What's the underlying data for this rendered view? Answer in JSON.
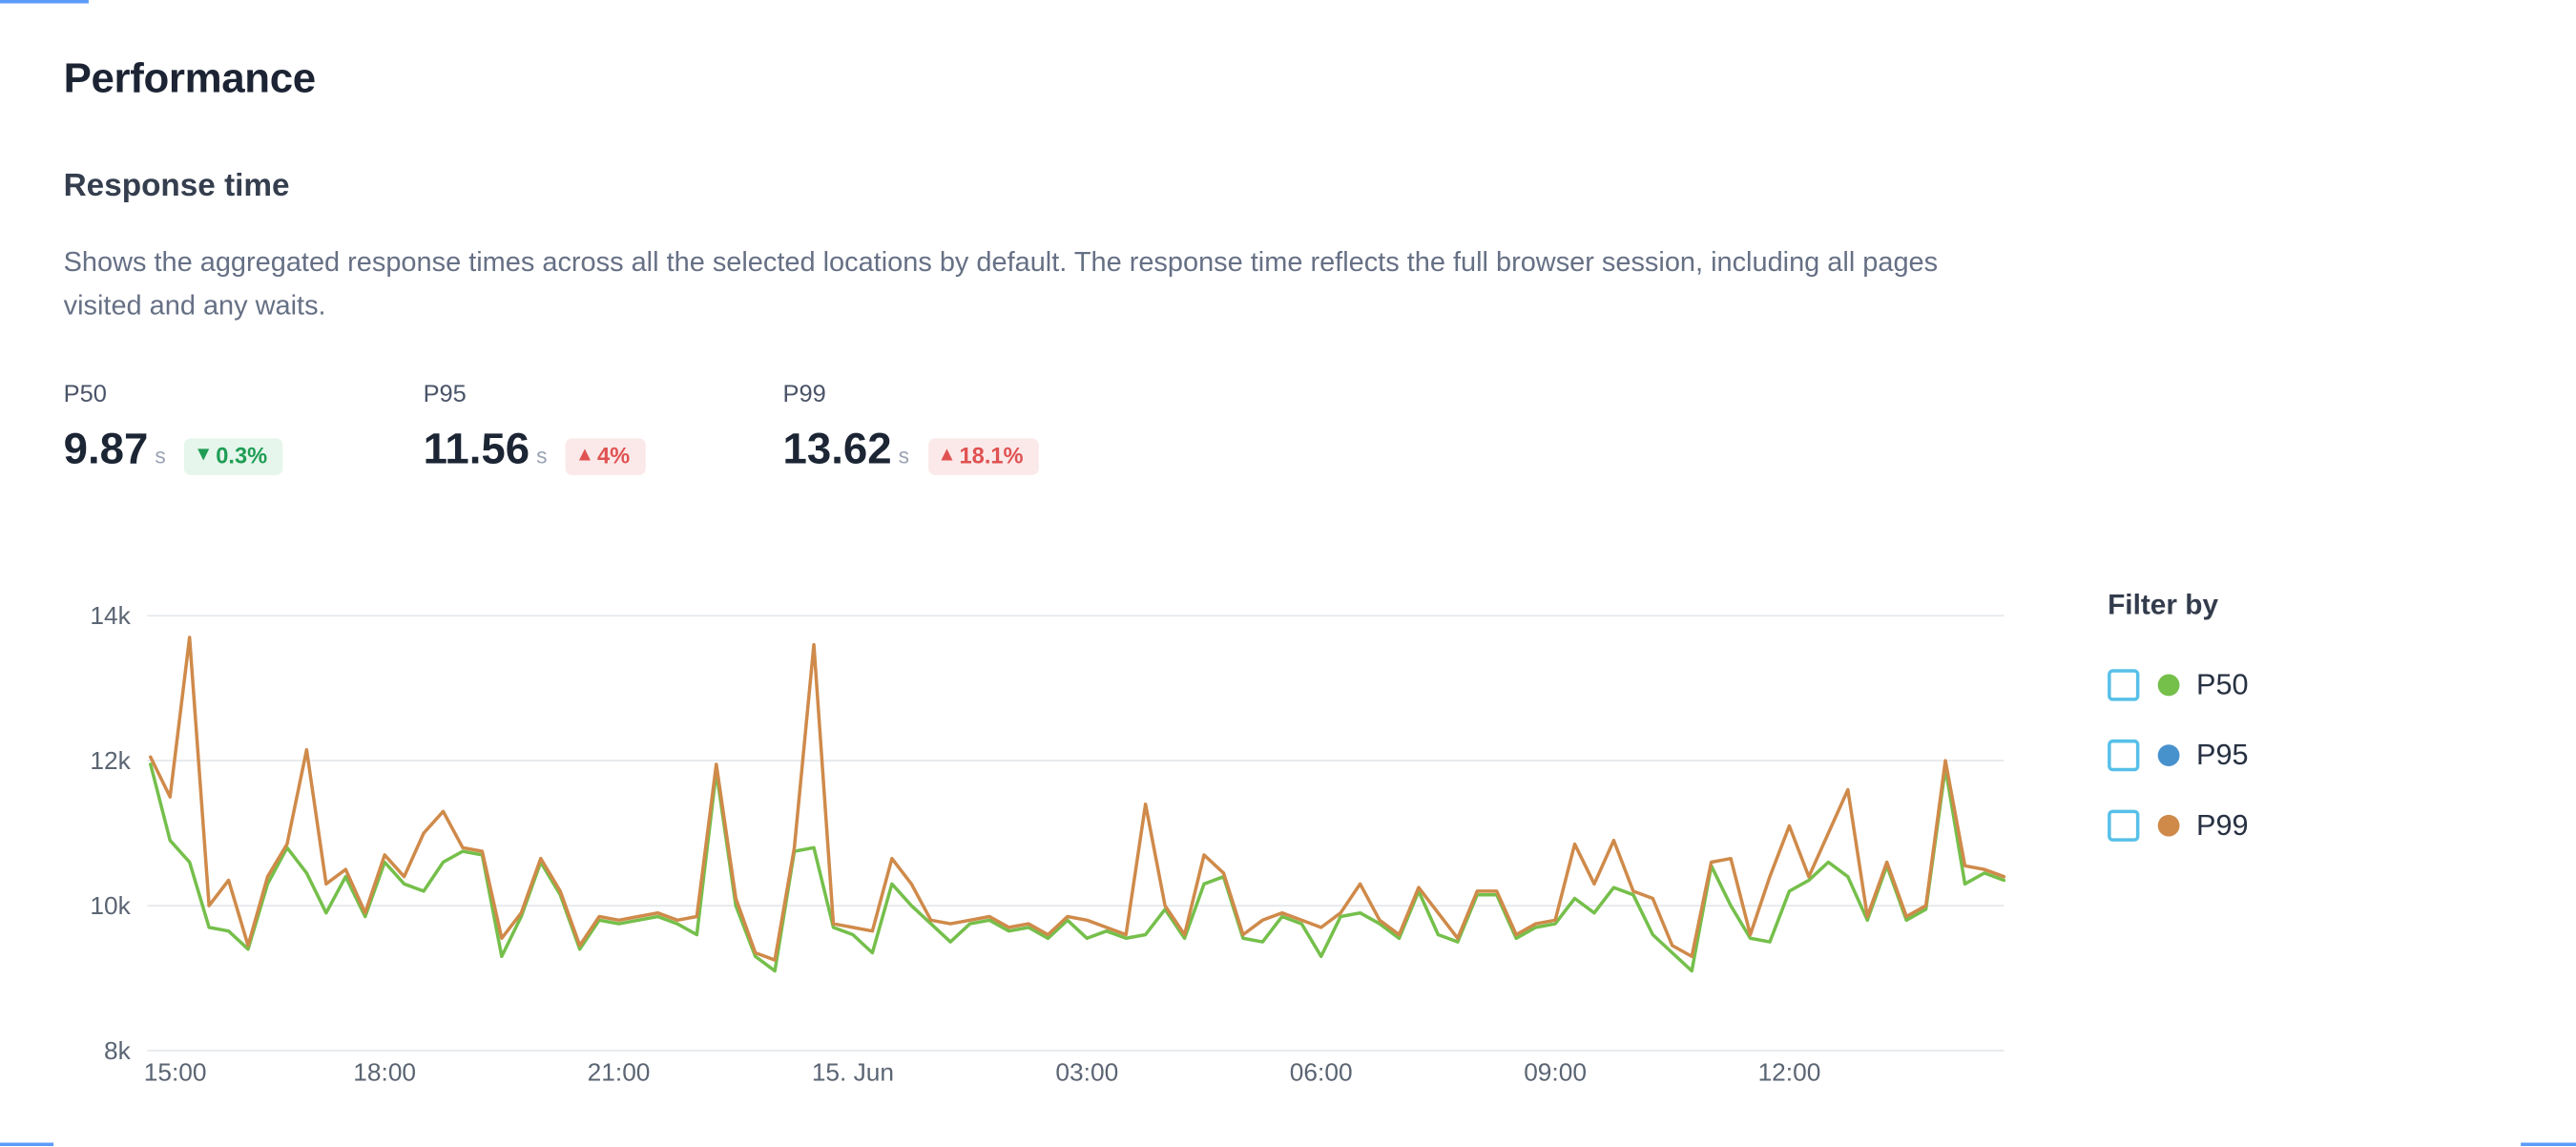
{
  "page": {
    "title": "Performance"
  },
  "section": {
    "heading": "Response time",
    "description": "Shows the aggregated response times across all the selected locations by default. The response time reflects the full browser session, including all pages visited and any waits."
  },
  "stats": [
    {
      "label": "P50",
      "value": "9.87",
      "unit": "s",
      "arrow": "▼",
      "delta": "0.3%",
      "trend": "positive"
    },
    {
      "label": "P95",
      "value": "11.56",
      "unit": "s",
      "arrow": "▲",
      "delta": "4%",
      "trend": "negative"
    },
    {
      "label": "P99",
      "value": "13.62",
      "unit": "s",
      "arrow": "▲",
      "delta": "18.1%",
      "trend": "negative"
    }
  ],
  "filter": {
    "heading": "Filter by",
    "items": [
      {
        "label": "P50",
        "color": "#75bf4b",
        "checked": false
      },
      {
        "label": "P95",
        "color": "#4791cd",
        "checked": false
      },
      {
        "label": "P99",
        "color": "#cf8a4a",
        "checked": false
      }
    ]
  },
  "colors": {
    "positive": "#1f9d55",
    "positive_bg": "#e6f6ec",
    "negative": "#e05252",
    "negative_bg": "#fbe9e9",
    "checkbox_border": "#57c0e8",
    "grid": "#e5e8ec",
    "fragment_blue": "#5b9bf8"
  },
  "chart_data": {
    "type": "line",
    "title": "Response time",
    "xlabel": "",
    "ylabel": "",
    "grid": "horizontal",
    "legend_position": "right",
    "ylim": [
      8000,
      14000
    ],
    "y_ticks": [
      "14k",
      "12k",
      "10k",
      "8k"
    ],
    "y_tick_values": [
      14000,
      12000,
      10000,
      8000
    ],
    "x_tick_labels": [
      "15:00",
      "18:00",
      "21:00",
      "15. Jun",
      "03:00",
      "06:00",
      "09:00",
      "12:00"
    ],
    "x_tick_indices": [
      0,
      12,
      24,
      36,
      48,
      60,
      72,
      84
    ],
    "x_step_minutes": 15,
    "series": [
      {
        "name": "P50",
        "color": "#75bf4b",
        "values": [
          11950,
          10900,
          10600,
          9700,
          9650,
          9400,
          10300,
          10800,
          10450,
          9900,
          10400,
          9850,
          10600,
          10300,
          10200,
          10600,
          10750,
          10700,
          9300,
          9850,
          10600,
          10150,
          9400,
          9800,
          9750,
          9800,
          9850,
          9750,
          9600,
          11850,
          10000,
          9300,
          9100,
          10750,
          10800,
          9700,
          9600,
          9350,
          10300,
          10000,
          9750,
          9500,
          9750,
          9800,
          9650,
          9700,
          9550,
          9800,
          9550,
          9650,
          9550,
          9600,
          9950,
          9550,
          10300,
          10400,
          9550,
          9500,
          9850,
          9750,
          9300,
          9850,
          9900,
          9750,
          9550,
          10200,
          9600,
          9500,
          10150,
          10150,
          9550,
          9700,
          9750,
          10100,
          9900,
          10250,
          10150,
          9600,
          9350,
          9100,
          10550,
          10000,
          9550,
          9500,
          10200,
          10350,
          10600,
          10400,
          9800,
          10550,
          9800,
          9950,
          11900,
          10300,
          10450,
          10350
        ]
      },
      {
        "name": "P99",
        "color": "#cf8a4a",
        "values": [
          12050,
          11500,
          13700,
          10000,
          10350,
          9450,
          10400,
          10850,
          12150,
          10300,
          10500,
          9900,
          10700,
          10400,
          11000,
          11300,
          10800,
          10750,
          9550,
          9900,
          10650,
          10200,
          9450,
          9850,
          9800,
          9850,
          9900,
          9800,
          9850,
          11950,
          10100,
          9350,
          9250,
          10800,
          13600,
          9750,
          9700,
          9650,
          10650,
          10300,
          9800,
          9750,
          9800,
          9850,
          9700,
          9750,
          9600,
          9850,
          9800,
          9700,
          9600,
          11400,
          10000,
          9600,
          10700,
          10450,
          9600,
          9800,
          9900,
          9800,
          9700,
          9900,
          10300,
          9800,
          9600,
          10250,
          9900,
          9550,
          10200,
          10200,
          9600,
          9750,
          9800,
          10850,
          10300,
          10900,
          10200,
          10100,
          9450,
          9300,
          10600,
          10650,
          9600,
          10400,
          11100,
          10400,
          11000,
          11600,
          9850,
          10600,
          9850,
          10000,
          12000,
          10550,
          10500,
          10400
        ]
      }
    ]
  }
}
